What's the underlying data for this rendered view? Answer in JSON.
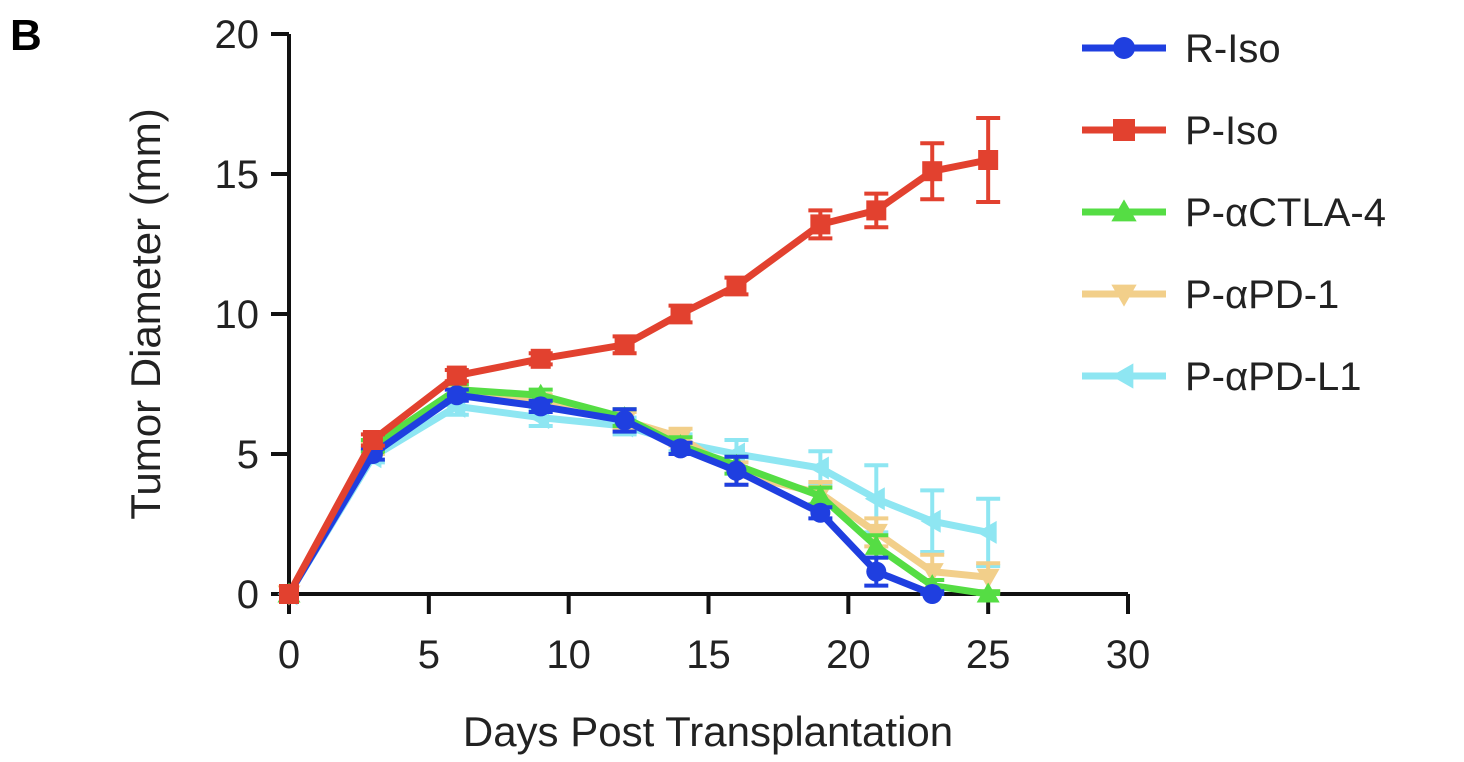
{
  "panel_label": "B",
  "chart_data": {
    "type": "line",
    "title": "",
    "xlabel": "Days Post Transplantation",
    "ylabel": "Tumor Diameter (mm)",
    "xlim": [
      0,
      30
    ],
    "ylim": [
      0,
      20
    ],
    "xticks": [
      0,
      5,
      10,
      15,
      20,
      25,
      30
    ],
    "yticks": [
      0,
      5,
      10,
      15,
      20
    ],
    "grid": false,
    "legend_position": "right",
    "series": [
      {
        "name": "P-αPD-L1",
        "color": "#8ee6f2",
        "marker": "triangle-left",
        "x": [
          0,
          3,
          6,
          9,
          12,
          14,
          16,
          19,
          21,
          23,
          25
        ],
        "y": [
          0,
          4.9,
          6.7,
          6.3,
          6.0,
          5.4,
          5.0,
          4.5,
          3.4,
          2.6,
          2.2
        ],
        "err": [
          0,
          0.2,
          0.3,
          0.3,
          0.3,
          0.3,
          0.5,
          0.6,
          1.2,
          1.1,
          1.2
        ]
      },
      {
        "name": "P-αPD-1",
        "color": "#f2cf8a",
        "marker": "triangle-down",
        "x": [
          0,
          3,
          6,
          9,
          12,
          14,
          16,
          19,
          21,
          23,
          25
        ],
        "y": [
          0,
          5.2,
          7.2,
          6.9,
          6.2,
          5.6,
          4.3,
          3.6,
          2.2,
          0.8,
          0.6
        ],
        "err": [
          0,
          0.2,
          0.2,
          0.2,
          0.3,
          0.3,
          0.4,
          0.4,
          0.5,
          0.6,
          0.5
        ]
      },
      {
        "name": "P-αCTLA-4",
        "color": "#55dd44",
        "marker": "triangle-up",
        "x": [
          0,
          3,
          6,
          9,
          12,
          14,
          16,
          19,
          21,
          23,
          25
        ],
        "y": [
          0,
          5.3,
          7.3,
          7.1,
          6.3,
          5.3,
          4.6,
          3.5,
          1.7,
          0.3,
          0.0
        ],
        "err": [
          0,
          0.2,
          0.2,
          0.2,
          0.3,
          0.3,
          0.3,
          0.3,
          0.4,
          0.2,
          0.1
        ]
      },
      {
        "name": "R-Iso",
        "color": "#1f3fe0",
        "marker": "circle",
        "x": [
          0,
          3,
          6,
          9,
          12,
          14,
          16,
          19,
          21,
          23
        ],
        "y": [
          0,
          5.0,
          7.1,
          6.7,
          6.2,
          5.2,
          4.4,
          2.9,
          0.8,
          0.0
        ],
        "err": [
          0,
          0.2,
          0.2,
          0.2,
          0.4,
          0.2,
          0.5,
          0.2,
          0.5,
          0.1
        ]
      },
      {
        "name": "P-Iso",
        "color": "#e2412f",
        "marker": "square",
        "x": [
          0,
          3,
          6,
          9,
          12,
          14,
          16,
          19,
          21,
          23,
          25
        ],
        "y": [
          0,
          5.5,
          7.8,
          8.4,
          8.9,
          10.0,
          11.0,
          13.2,
          13.7,
          15.1,
          15.5
        ],
        "err": [
          0,
          0.2,
          0.2,
          0.2,
          0.3,
          0.3,
          0.3,
          0.5,
          0.6,
          1.0,
          1.5
        ]
      }
    ],
    "legend": [
      {
        "name": "R-Iso",
        "color": "#1f3fe0",
        "marker": "circle"
      },
      {
        "name": "P-Iso",
        "color": "#e2412f",
        "marker": "square"
      },
      {
        "name": "P-αCTLA-4",
        "color": "#55dd44",
        "marker": "triangle-up"
      },
      {
        "name": "P-αPD-1",
        "color": "#f2cf8a",
        "marker": "triangle-down"
      },
      {
        "name": "P-αPD-L1",
        "color": "#8ee6f2",
        "marker": "triangle-left"
      }
    ]
  }
}
